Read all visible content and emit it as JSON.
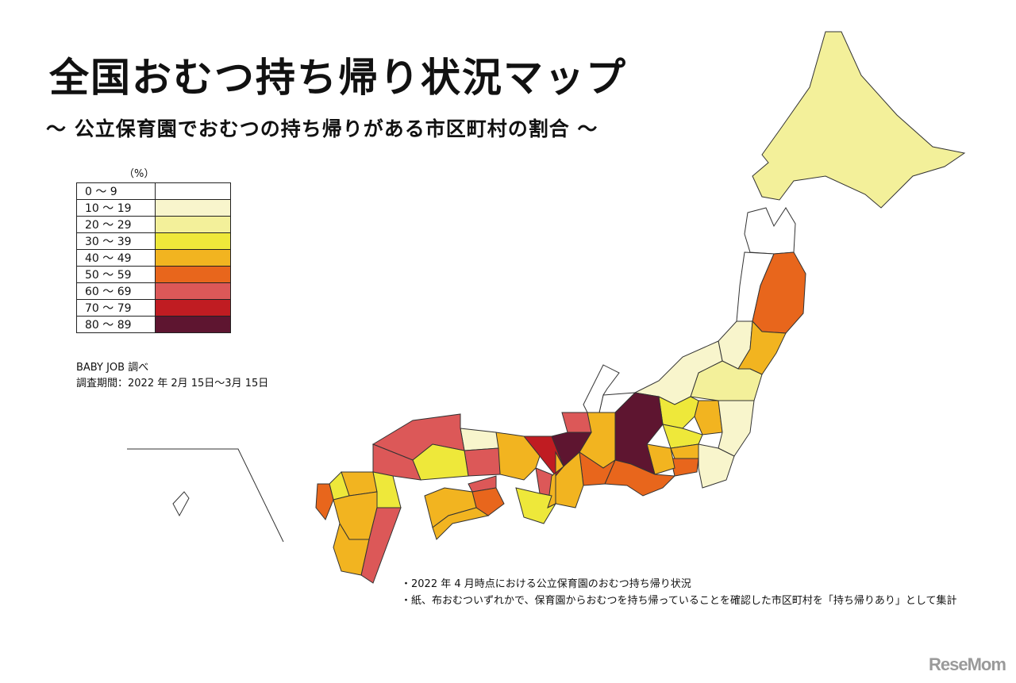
{
  "title": "全国おむつ持ち帰り状況マップ",
  "subtitle": "～ 公立保育園でおむつの持ち帰りがある市区町村の割合 ～",
  "legend": {
    "unit": "（%）",
    "items": [
      {
        "label": "0 ～ 9",
        "color": "#ffffff"
      },
      {
        "label": "10 ～ 19",
        "color": "#f8f5cc"
      },
      {
        "label": "20 ～ 29",
        "color": "#f3f09a"
      },
      {
        "label": "30 ～ 39",
        "color": "#eee83a"
      },
      {
        "label": "40 ～ 49",
        "color": "#f2b420"
      },
      {
        "label": "50 ～ 59",
        "color": "#e8661c"
      },
      {
        "label": "60 ～ 69",
        "color": "#dc5858"
      },
      {
        "label": "70 ～ 79",
        "color": "#c01c22"
      },
      {
        "label": "80 ～ 89",
        "color": "#5e1530"
      }
    ]
  },
  "source": "BABY JOB 調べ",
  "period": "調査期間：2022 年 2月 15日～3月 15日",
  "notes": [
    "・2022 年 4 月時点における公立保育園のおむつ持ち帰り状況",
    "・紙、布おむついずれかで、保育園からおむつを持ち帰っていることを確認した市区町村を「持ち帰りあり」として集計"
  ],
  "logo": "ReseMom",
  "map_data": {
    "prefecture_bucket": {
      "hokkaido": 2,
      "aomori": 0,
      "iwate": 5,
      "akita": 0,
      "miyagi": 4,
      "yamagata": 1,
      "fukushima": 2,
      "niigata": 1,
      "ibaraki": 1,
      "tochigi": 4,
      "gunma": 3,
      "saitama": 3,
      "chiba": 1,
      "tokyo": 4,
      "kanagawa": 5,
      "yamanashi": 4,
      "nagano": 8,
      "toyama": 0,
      "ishikawa": 0,
      "fukui": 6,
      "gifu": 4,
      "shizuoka": 5,
      "aichi": 5,
      "mie": 4,
      "shiga": 8,
      "kyoto": 7,
      "osaka": 6,
      "hyogo": 4,
      "nara": 4,
      "wakayama": 3,
      "tottori": 1,
      "shimane": 6,
      "okayama": 6,
      "hiroshima": 3,
      "yamaguchi": 6,
      "tokushima": 5,
      "kagawa": 6,
      "ehime": 4,
      "kochi": 4,
      "fukuoka": 4,
      "saga": 3,
      "nagasaki": 5,
      "kumamoto": 4,
      "oita": 3,
      "miyazaki": 6,
      "kagoshima": 4,
      "okinawa": 0
    }
  }
}
